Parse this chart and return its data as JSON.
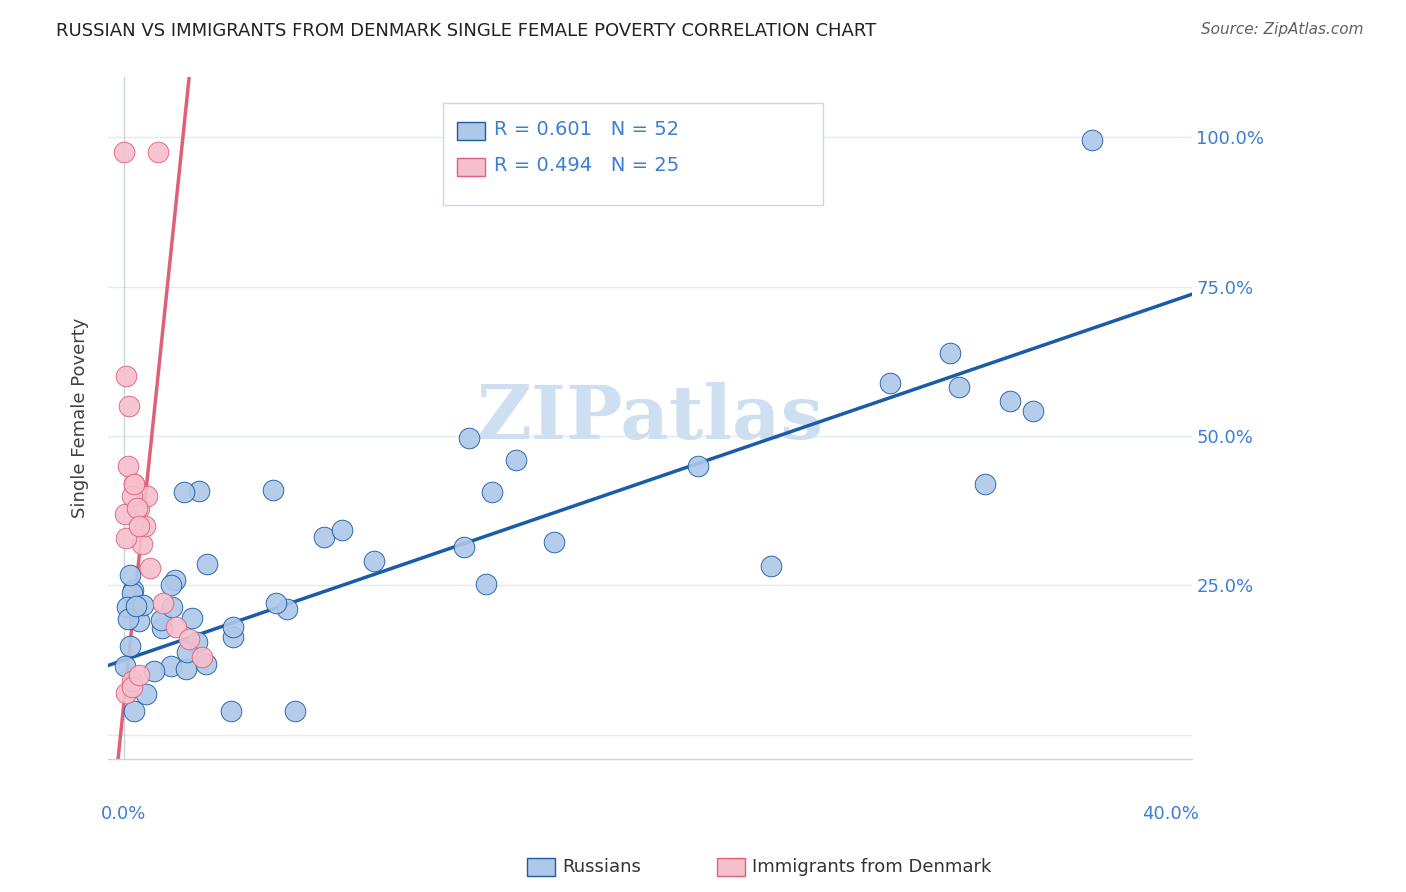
{
  "title": "RUSSIAN VS IMMIGRANTS FROM DENMARK SINGLE FEMALE POVERTY CORRELATION CHART",
  "source": "Source: ZipAtlas.com",
  "ylabel": "Single Female Poverty",
  "blue_R": 0.601,
  "blue_N": 52,
  "pink_R": 0.494,
  "pink_N": 25,
  "blue_color": "#adc8e8",
  "blue_line_color": "#1a5ca8",
  "pink_color": "#f5bfcc",
  "pink_line_color": "#e0607a",
  "watermark_color": "#cddff0",
  "title_color": "#222222",
  "axis_label_color": "#3a7fd5",
  "legend_text_color": "#3a7fd5",
  "grid_color": "#e2eaf2",
  "spine_color": "#c8d4e0",
  "blue_intercept": 0.125,
  "blue_slope": 1.5,
  "pink_intercept": 0.05,
  "pink_slope": 42.0,
  "xlim_min": -0.006,
  "xlim_max": 0.408,
  "ylim_min": -0.04,
  "ylim_max": 1.1
}
